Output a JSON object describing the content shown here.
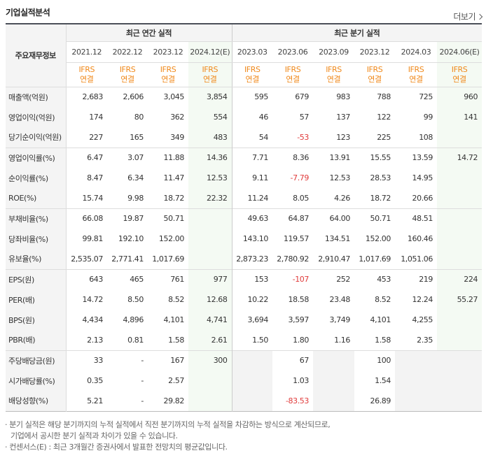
{
  "header": {
    "title": "기업실적분석",
    "more_label": "더보기"
  },
  "table": {
    "corner_label": "주요재무정보",
    "group_annual": "최근 연간 실적",
    "group_quarter": "최근 분기 실적",
    "periods": [
      "2021.12",
      "2022.12",
      "2023.12",
      "2024.12(E)",
      "2023.03",
      "2023.06",
      "2023.09",
      "2023.12",
      "2024.03",
      "2024.06(E)"
    ],
    "basis_top": "IFRS",
    "basis_bottom": "연결",
    "rows": [
      {
        "label": "매출액(억원)",
        "values": [
          "2,683",
          "2,606",
          "3,045",
          "3,854",
          "595",
          "679",
          "983",
          "788",
          "725",
          "960"
        ]
      },
      {
        "label": "영업이익(억원)",
        "values": [
          "174",
          "80",
          "362",
          "554",
          "46",
          "57",
          "137",
          "122",
          "99",
          "141"
        ]
      },
      {
        "label": "당기순이익(억원)",
        "values": [
          "227",
          "165",
          "349",
          "483",
          "54",
          "-53",
          "123",
          "225",
          "108",
          ""
        ]
      },
      {
        "label": "영업이익률(%)",
        "values": [
          "6.47",
          "3.07",
          "11.88",
          "14.36",
          "7.71",
          "8.36",
          "13.91",
          "15.55",
          "13.59",
          "14.72"
        ]
      },
      {
        "label": "순이익률(%)",
        "values": [
          "8.47",
          "6.34",
          "11.47",
          "12.53",
          "9.11",
          "-7.79",
          "12.53",
          "28.53",
          "14.95",
          ""
        ]
      },
      {
        "label": "ROE(%)",
        "values": [
          "15.74",
          "9.98",
          "18.72",
          "22.32",
          "11.24",
          "8.05",
          "4.26",
          "18.72",
          "20.66",
          ""
        ]
      },
      {
        "label": "부채비율(%)",
        "values": [
          "66.08",
          "19.87",
          "50.71",
          "",
          "49.63",
          "64.87",
          "64.00",
          "50.71",
          "48.51",
          ""
        ]
      },
      {
        "label": "당좌비율(%)",
        "values": [
          "99.81",
          "192.10",
          "152.00",
          "",
          "143.10",
          "119.57",
          "134.51",
          "152.00",
          "160.46",
          ""
        ]
      },
      {
        "label": "유보율(%)",
        "values": [
          "2,535.07",
          "2,771.41",
          "1,017.69",
          "",
          "2,873.23",
          "2,780.92",
          "2,910.47",
          "1,017.69",
          "1,051.06",
          ""
        ]
      },
      {
        "label": "EPS(원)",
        "values": [
          "643",
          "465",
          "761",
          "977",
          "153",
          "-107",
          "252",
          "453",
          "219",
          "224"
        ]
      },
      {
        "label": "PER(배)",
        "values": [
          "14.72",
          "8.50",
          "8.52",
          "12.68",
          "10.22",
          "18.58",
          "23.48",
          "8.52",
          "12.24",
          "55.27"
        ]
      },
      {
        "label": "BPS(원)",
        "values": [
          "4,434",
          "4,896",
          "4,101",
          "4,741",
          "3,694",
          "3,597",
          "3,749",
          "4,101",
          "4,255",
          ""
        ]
      },
      {
        "label": "PBR(배)",
        "values": [
          "2.13",
          "0.81",
          "1.58",
          "2.61",
          "1.50",
          "1.80",
          "1.16",
          "1.58",
          "2.35",
          ""
        ]
      },
      {
        "label": "주당배당금(원)",
        "values": [
          "33",
          "-",
          "167",
          "300",
          "",
          "67",
          "",
          "100",
          "",
          ""
        ]
      },
      {
        "label": "시가배당률(%)",
        "values": [
          "0.35",
          "-",
          "2.57",
          "",
          "",
          "1.03",
          "",
          "1.54",
          "",
          ""
        ]
      },
      {
        "label": "배당성향(%)",
        "values": [
          "5.21",
          "-",
          "29.82",
          "",
          "",
          "-83.53",
          "",
          "26.89",
          "",
          ""
        ]
      }
    ]
  },
  "notes": {
    "line1": "· 분기 실적은 해당 분기까지의 누적 실적에서 직전 분기까지의 누적 실적을 차감하는 방식으로 계산되므로,",
    "line2": "기업에서 공시한 분기 실적과 차이가 있을 수 있습니다.",
    "line3": "· 컨센서스(E) : 최근 3개월간 증권사에서 발표한 전망치의 평균값입니다."
  }
}
